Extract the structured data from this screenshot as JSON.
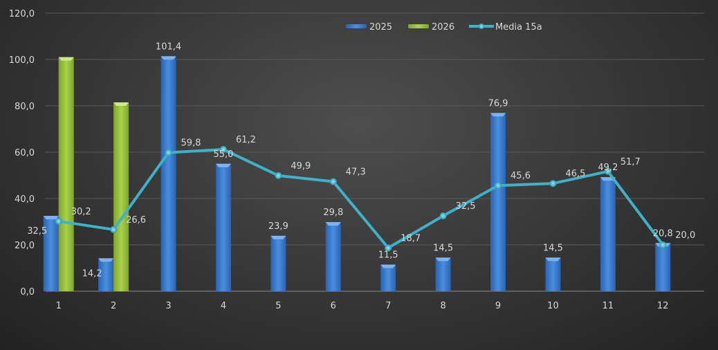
{
  "chart_data": {
    "type": "bar",
    "title": "",
    "xlabel": "",
    "ylabel": "",
    "ylim": [
      0,
      120
    ],
    "yticks": [
      "0,0",
      "20,0",
      "40,0",
      "60,0",
      "80,0",
      "100,0",
      "120,0"
    ],
    "grid": true,
    "legend_position": "top-right",
    "categories": [
      "1",
      "2",
      "3",
      "4",
      "5",
      "6",
      "7",
      "8",
      "9",
      "10",
      "11",
      "12"
    ],
    "series": [
      {
        "name": "2025",
        "type": "bar",
        "color": "#3c7fd4",
        "values": [
          32.5,
          14.2,
          101.4,
          55.0,
          23.9,
          29.8,
          11.5,
          14.5,
          76.9,
          14.5,
          49.2,
          20.8
        ],
        "labels": [
          "32,5",
          "14,2",
          "101,4",
          "55,0",
          "23,9",
          "29,8",
          "11,5",
          "14,5",
          "76,9",
          "14,5",
          "49,2",
          "20,8"
        ]
      },
      {
        "name": "2026",
        "type": "bar",
        "color": "#9bc83a",
        "values": [
          101.0,
          81.5,
          null,
          null,
          null,
          null,
          null,
          null,
          null,
          null,
          null,
          null
        ]
      },
      {
        "name": "Media 15a",
        "type": "line",
        "color": "#3fb1c8",
        "values": [
          30.2,
          26.6,
          59.8,
          61.2,
          49.9,
          47.3,
          18.7,
          32.5,
          45.6,
          46.5,
          51.7,
          20.0
        ],
        "labels": [
          "30,2",
          "26,6",
          "59,8",
          "61,2",
          "49,9",
          "47,3",
          "18,7",
          "32,5",
          "45,6",
          "46,5",
          "51,7",
          "20,0"
        ]
      }
    ]
  }
}
